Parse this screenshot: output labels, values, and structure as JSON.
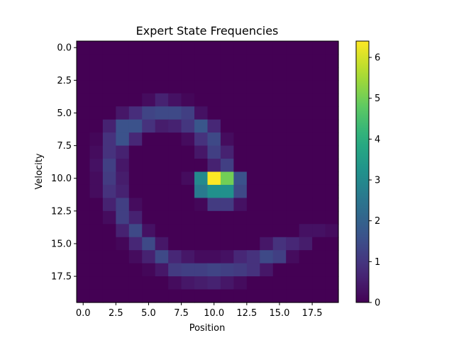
{
  "chart_data": {
    "type": "heatmap",
    "title": "Expert State Frequencies",
    "xlabel": "Position",
    "ylabel": "Velocity",
    "x_ticks": [
      "0.0",
      "2.5",
      "5.0",
      "7.5",
      "10.0",
      "12.5",
      "15.0",
      "17.5"
    ],
    "x_tick_values": [
      0,
      2.5,
      5,
      7.5,
      10,
      12.5,
      15,
      17.5
    ],
    "y_ticks": [
      "0.0",
      "2.5",
      "5.0",
      "7.5",
      "10.0",
      "12.5",
      "15.0",
      "17.5"
    ],
    "y_tick_values": [
      0,
      2.5,
      5,
      7.5,
      10,
      12.5,
      15,
      17.5
    ],
    "colorbar": {
      "min": 0,
      "max": 6.4,
      "ticks": [
        "0",
        "1",
        "2",
        "3",
        "4",
        "5",
        "6"
      ],
      "tick_values": [
        0,
        1,
        2,
        3,
        4,
        5,
        6
      ],
      "colormap": "viridis"
    },
    "rows": 20,
    "cols": 20,
    "grid": [
      [
        0,
        0,
        0,
        0,
        0,
        0,
        0,
        0,
        0,
        0,
        0,
        0,
        0,
        0,
        0,
        0,
        0,
        0,
        0,
        0
      ],
      [
        0,
        0,
        0,
        0,
        0,
        0,
        0,
        0,
        0,
        0,
        0,
        0,
        0,
        0,
        0,
        0,
        0,
        0,
        0,
        0
      ],
      [
        0,
        0,
        0,
        0,
        0,
        0,
        0,
        0,
        0,
        0,
        0,
        0,
        0,
        0,
        0,
        0,
        0,
        0,
        0,
        0
      ],
      [
        0,
        0,
        0,
        0,
        0,
        0,
        0,
        0,
        0,
        0,
        0,
        0,
        0,
        0,
        0,
        0,
        0,
        0,
        0,
        0
      ],
      [
        0,
        0,
        0,
        0,
        0,
        0.2,
        0.6,
        0.3,
        0.1,
        0,
        0,
        0,
        0,
        0,
        0,
        0,
        0,
        0,
        0,
        0
      ],
      [
        0,
        0,
        0,
        0.4,
        0.8,
        1.3,
        1.4,
        1.4,
        1.2,
        0.3,
        0,
        0,
        0,
        0,
        0,
        0,
        0,
        0,
        0,
        0
      ],
      [
        0,
        0,
        0.6,
        1.6,
        1.6,
        0.9,
        0.5,
        0.6,
        1.0,
        1.7,
        0.7,
        0,
        0,
        0,
        0,
        0,
        0,
        0,
        0,
        0
      ],
      [
        0,
        0.1,
        0.9,
        1.6,
        0.7,
        0,
        0,
        0,
        0.2,
        0.9,
        1.4,
        0.2,
        0,
        0,
        0,
        0,
        0,
        0,
        0,
        0
      ],
      [
        0,
        0.2,
        0.9,
        0.6,
        0,
        0,
        0,
        0,
        0,
        0.4,
        1.2,
        0.6,
        0,
        0,
        0,
        0,
        0,
        0,
        0,
        0
      ],
      [
        0,
        0.3,
        1.2,
        0.4,
        0,
        0,
        0,
        0,
        0,
        0,
        0.6,
        1.2,
        0,
        0,
        0,
        0,
        0,
        0,
        0,
        0
      ],
      [
        0,
        0.2,
        1.1,
        0.5,
        0,
        0,
        0,
        0,
        0.2,
        3.0,
        6.4,
        5.0,
        1.6,
        0,
        0,
        0,
        0,
        0,
        0,
        0
      ],
      [
        0,
        0.2,
        0.9,
        0.6,
        0,
        0,
        0,
        0,
        0,
        2.6,
        3.2,
        3.2,
        1.4,
        0,
        0,
        0,
        0,
        0,
        0,
        0
      ],
      [
        0,
        0,
        0.6,
        1.2,
        0.2,
        0,
        0,
        0,
        0,
        0.1,
        1.1,
        1.1,
        0.3,
        0,
        0,
        0,
        0,
        0,
        0,
        0
      ],
      [
        0,
        0,
        0.2,
        1.2,
        0.6,
        0,
        0,
        0,
        0,
        0,
        0,
        0,
        0,
        0,
        0,
        0,
        0,
        0,
        0,
        0
      ],
      [
        0,
        0,
        0,
        0.6,
        1.4,
        0.3,
        0,
        0,
        0,
        0,
        0,
        0,
        0,
        0,
        0,
        0,
        0,
        0.3,
        0.3,
        0.2
      ],
      [
        0,
        0,
        0,
        0.1,
        0.7,
        1.4,
        0.4,
        0,
        0,
        0,
        0,
        0,
        0,
        0,
        0.4,
        0.9,
        0.7,
        0.5,
        0,
        0
      ],
      [
        0,
        0,
        0,
        0,
        0.2,
        0.6,
        1.4,
        0.7,
        0.4,
        0.2,
        0.2,
        0.3,
        0.7,
        0.9,
        1.4,
        1.2,
        0.2,
        0,
        0,
        0
      ],
      [
        0,
        0,
        0,
        0,
        0,
        0.1,
        0.4,
        1.1,
        1.2,
        1.2,
        1.3,
        1.2,
        1.1,
        0.9,
        0.4,
        0,
        0,
        0,
        0,
        0
      ],
      [
        0,
        0,
        0,
        0,
        0,
        0,
        0,
        0.2,
        0.4,
        0.5,
        0.6,
        0.4,
        0.2,
        0,
        0,
        0,
        0,
        0,
        0,
        0
      ],
      [
        0,
        0,
        0,
        0,
        0,
        0,
        0,
        0,
        0,
        0,
        0,
        0,
        0,
        0,
        0,
        0,
        0,
        0,
        0,
        0
      ]
    ]
  }
}
